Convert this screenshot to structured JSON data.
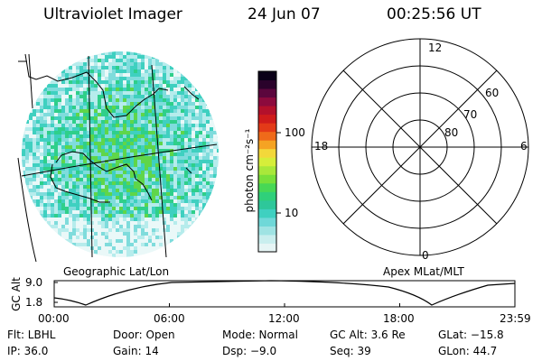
{
  "header": {
    "title": "Ultraviolet Imager",
    "date": "24 Jun 07",
    "time": "00:25:56 UT"
  },
  "left_panel": {
    "caption": "Geographic Lat/Lon"
  },
  "colorbar": {
    "unit_label": "photon cm⁻²s⁻¹",
    "ticks": [
      "100",
      "10"
    ],
    "colors": [
      "#e6f5f5",
      "#c9eeee",
      "#9fe3e3",
      "#6fd8d8",
      "#3fd0c0",
      "#2ec79a",
      "#2fd07a",
      "#47d855",
      "#78e03a",
      "#a9e83a",
      "#d6ee3a",
      "#f3d83a",
      "#f5a323",
      "#ef6a1a",
      "#e33a18",
      "#cf1b1b",
      "#b3102b",
      "#8c0a3d",
      "#5b063d",
      "#2a022b",
      "#0a0018"
    ]
  },
  "polar_plot": {
    "caption": "Apex MLat/MLT",
    "mlt_labels": {
      "top": "12",
      "bottom": "0",
      "left": "18",
      "right": "6"
    },
    "lat_labels": [
      "60",
      "70",
      "80"
    ]
  },
  "altitude_strip": {
    "ylabel": "GC Alt",
    "y_ticks": [
      "9.0",
      "1.8"
    ],
    "x_ticks": [
      "00:00",
      "06:00",
      "12:00",
      "18:00",
      "23:59"
    ]
  },
  "info": {
    "row1": [
      {
        "key": "flt",
        "text": "Flt: LBHL"
      },
      {
        "key": "door",
        "text": "Door: Open"
      },
      {
        "key": "mode",
        "text": "Mode: Normal"
      },
      {
        "key": "gcalt",
        "text": "GC Alt: 3.6 Re"
      },
      {
        "key": "glat",
        "text": "GLat: −15.8"
      }
    ],
    "row2": [
      {
        "key": "ip",
        "text": "IP: 36.0"
      },
      {
        "key": "gain",
        "text": "Gain: 14"
      },
      {
        "key": "dsp",
        "text": "Dsp:   −9.0"
      },
      {
        "key": "seq",
        "text": "Seq: 39"
      },
      {
        "key": "glon",
        "text": "GLon:  44.7"
      }
    ]
  }
}
